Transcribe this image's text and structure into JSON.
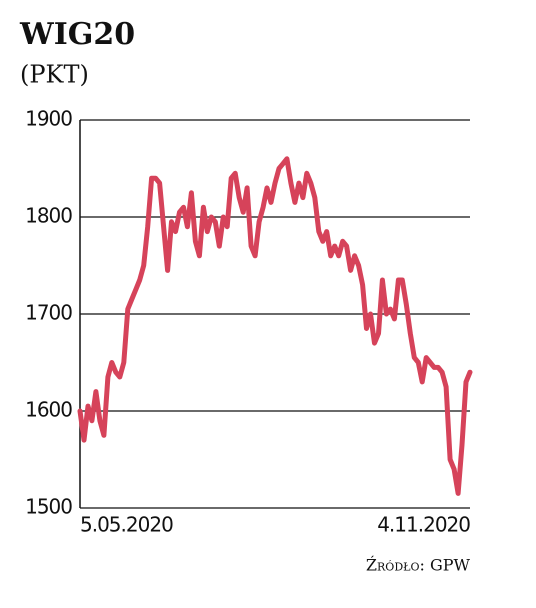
{
  "chart_data": {
    "type": "line",
    "title": "WIG20",
    "subtitle": "(PKT)",
    "source": "Źródło: GPW",
    "categories": [
      "5.05.2020",
      null,
      null,
      null,
      null,
      null,
      null,
      null,
      null,
      null,
      null,
      null,
      null,
      null,
      null,
      null,
      null,
      null,
      null,
      null,
      null,
      null,
      null,
      null,
      null,
      null,
      null,
      null,
      null,
      null,
      null,
      null,
      null,
      null,
      null,
      null,
      null,
      null,
      null,
      null,
      null,
      null,
      null,
      null,
      null,
      null,
      null,
      null,
      null,
      null,
      null,
      null,
      null,
      null,
      null,
      null,
      null,
      null,
      null,
      null,
      null,
      null,
      null,
      null,
      null,
      null,
      null,
      null,
      null,
      null,
      null,
      null,
      null,
      null,
      null,
      null,
      null,
      null,
      null,
      null,
      null,
      null,
      null,
      null,
      null,
      null,
      null,
      null,
      null,
      null,
      null,
      null,
      null,
      null,
      null,
      null,
      null,
      null,
      "4.11.2020"
    ],
    "series": [
      {
        "color": "#d6435a",
        "values": [
          1600,
          1570,
          1605,
          1590,
          1620,
          1590,
          1575,
          1635,
          1650,
          1640,
          1635,
          1650,
          1705,
          1715,
          1725,
          1735,
          1750,
          1790,
          1840,
          1840,
          1835,
          1790,
          1745,
          1795,
          1785,
          1805,
          1810,
          1790,
          1825,
          1775,
          1760,
          1810,
          1785,
          1800,
          1795,
          1770,
          1800,
          1790,
          1840,
          1845,
          1820,
          1805,
          1830,
          1770,
          1760,
          1795,
          1810,
          1830,
          1815,
          1835,
          1850,
          1855,
          1860,
          1835,
          1815,
          1835,
          1820,
          1845,
          1835,
          1820,
          1785,
          1775,
          1785,
          1760,
          1770,
          1760,
          1775,
          1770,
          1745,
          1760,
          1750,
          1730,
          1685,
          1700,
          1670,
          1680,
          1735,
          1700,
          1705,
          1695,
          1735,
          1735,
          1710,
          1680,
          1655,
          1650,
          1630,
          1655,
          1650,
          1645,
          1645,
          1640,
          1625,
          1550,
          1540,
          1515,
          1565,
          1630,
          1640
        ]
      }
    ],
    "ylim": [
      1500,
      1900
    ],
    "yticks": [
      1500,
      1600,
      1700,
      1800,
      1900
    ],
    "grid": true
  }
}
